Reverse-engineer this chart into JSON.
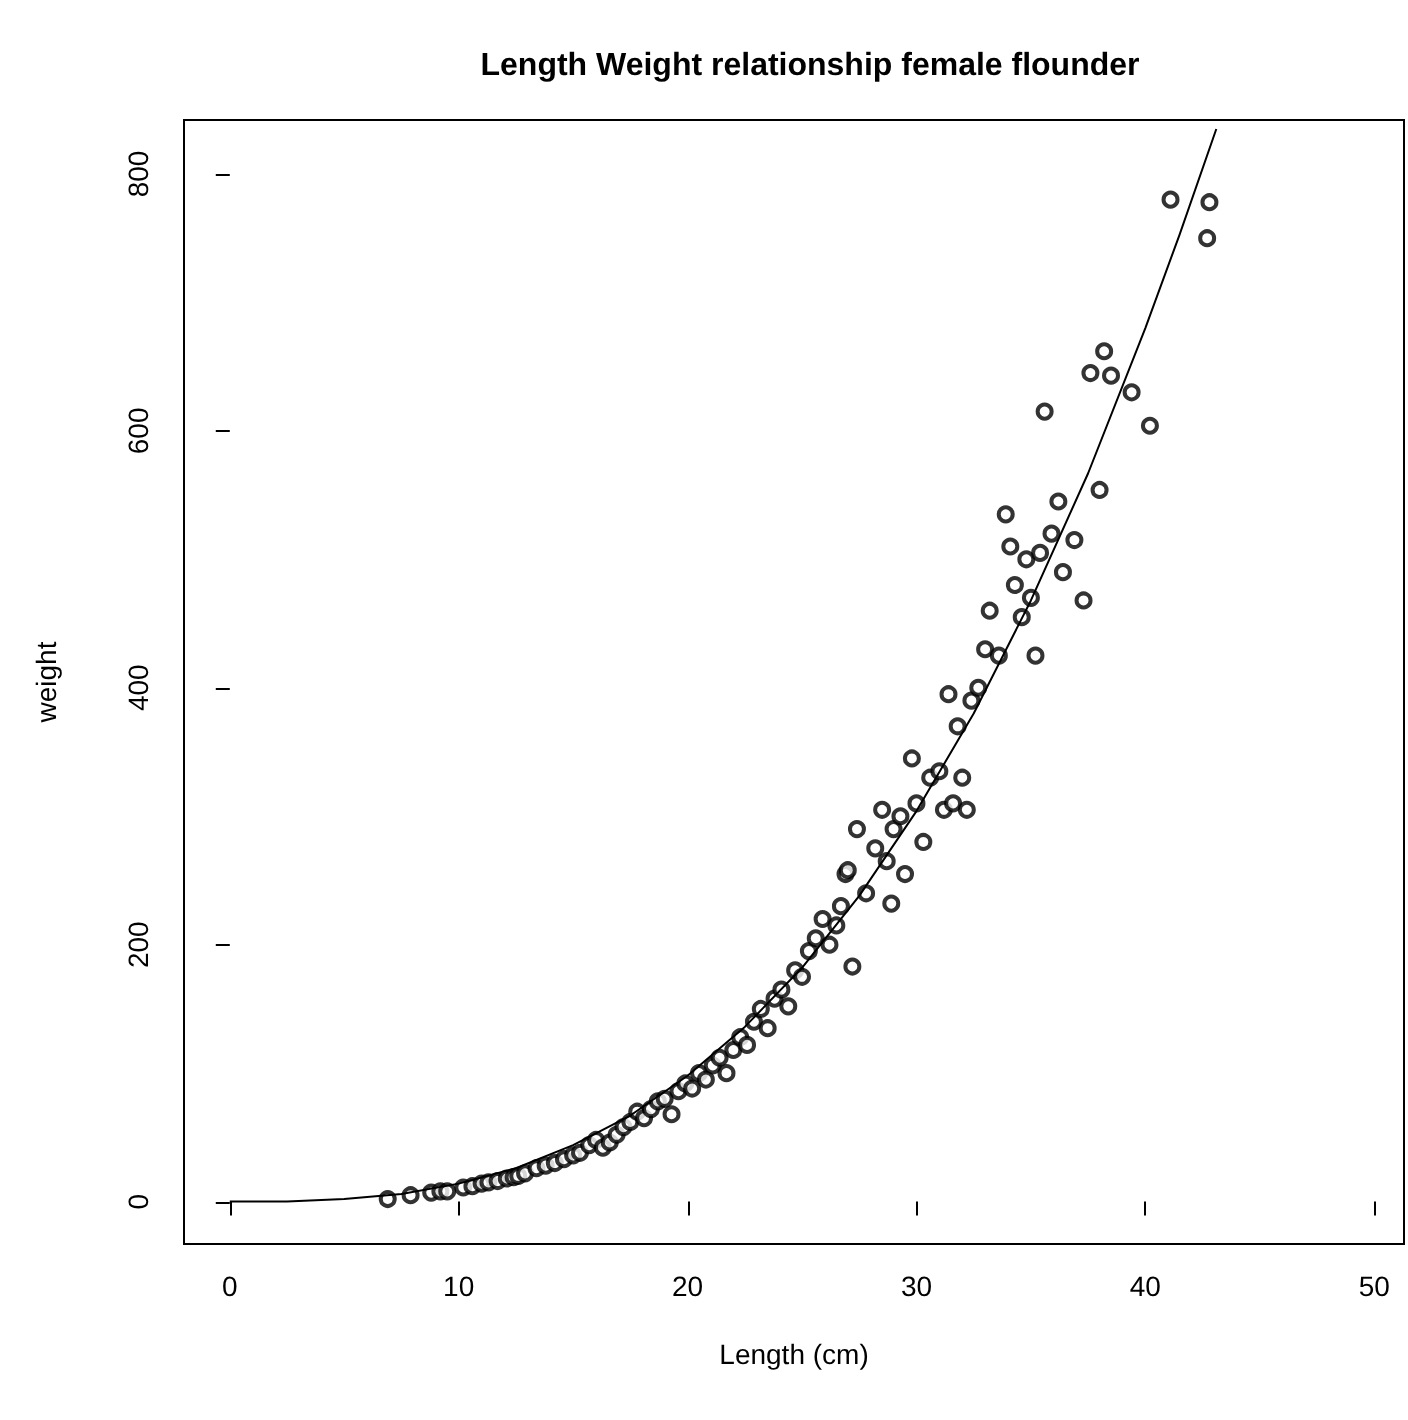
{
  "chart_data": {
    "type": "scatter",
    "title": "Length Weight relationship female flounder",
    "xlabel": "Length (cm)",
    "ylabel": "weight",
    "xlim": [
      -2,
      51.3
    ],
    "ylim": [
      -33,
      842
    ],
    "xticks": [
      0,
      10,
      20,
      30,
      40,
      50
    ],
    "yticks": [
      0,
      200,
      400,
      600,
      800
    ],
    "series": [
      {
        "marker": "circle",
        "color": "#000000",
        "x": [
          6.9,
          7.9,
          8.8,
          9.2,
          9.5,
          10.2,
          10.6,
          11,
          11.3,
          11.7,
          12.1,
          12.4,
          12.6,
          12.9,
          13.4,
          13.8,
          14.2,
          14.6,
          15,
          15.3,
          15.7,
          16,
          16.3,
          16.6,
          16.9,
          17.2,
          17.5,
          17.8,
          18.1,
          18.4,
          18.7,
          19,
          19.3,
          19.6,
          19.9,
          20.2,
          20.5,
          20.8,
          21.1,
          21.4,
          21.7,
          22,
          22.3,
          22.6,
          22.9,
          23.2,
          23.5,
          23.8,
          24.1,
          24.4,
          24.7,
          25,
          25.3,
          25.6,
          25.9,
          26.2,
          26.5,
          26.7,
          26.9,
          27,
          27.2,
          27.4,
          27.8,
          28.2,
          28.5,
          28.7,
          28.9,
          29,
          29.3,
          29.5,
          29.8,
          30,
          30.3,
          30.6,
          31,
          31.2,
          31.4,
          31.6,
          31.8,
          32,
          32.2,
          32.4,
          32.7,
          33,
          33.2,
          33.6,
          33.9,
          34.1,
          34.3,
          34.6,
          34.8,
          35,
          35.2,
          35.4,
          35.6,
          35.9,
          36.2,
          36.4,
          36.9,
          37.3,
          37.6,
          38,
          38.2,
          38.5,
          39.4,
          40.2,
          41.1,
          42.7,
          42.8
        ],
        "values": [
          2,
          5,
          7,
          8,
          8,
          11,
          12,
          14,
          15,
          16,
          18,
          19,
          20,
          22,
          26,
          28,
          30,
          33,
          36,
          38,
          44,
          48,
          42,
          46,
          52,
          58,
          62,
          70,
          65,
          72,
          78,
          80,
          68,
          86,
          92,
          88,
          100,
          95,
          106,
          112,
          100,
          118,
          128,
          122,
          140,
          150,
          135,
          158,
          165,
          152,
          180,
          175,
          195,
          205,
          220,
          200,
          215,
          230,
          255,
          258,
          183,
          290,
          240,
          275,
          305,
          265,
          232,
          290,
          300,
          255,
          345,
          310,
          280,
          330,
          335,
          305,
          395,
          310,
          370,
          330,
          305,
          390,
          400,
          430,
          460,
          425,
          535,
          510,
          480,
          455,
          500,
          470,
          425,
          505,
          615,
          520,
          545,
          490,
          515,
          468,
          645,
          554,
          662,
          643,
          630,
          604,
          780,
          750,
          778
        ]
      },
      {
        "type": "line",
        "marker": "none",
        "color": "#000000",
        "x": [
          0,
          2.5,
          5,
          7.5,
          10,
          12.5,
          15,
          17.5,
          20,
          22.5,
          25,
          27.5,
          30,
          32.5,
          35,
          37.5,
          40,
          41.5,
          43.1
        ],
        "values": [
          0,
          0,
          2,
          6,
          14,
          26,
          44,
          67,
          98,
          136,
          182,
          238,
          304,
          380,
          468,
          567,
          680,
          753,
          835
        ]
      }
    ]
  }
}
